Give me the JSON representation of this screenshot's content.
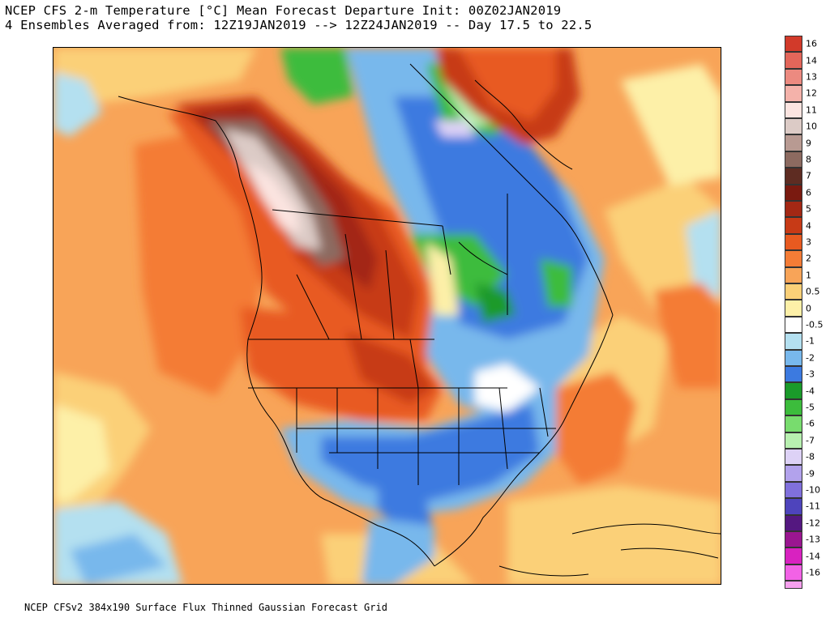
{
  "header": {
    "line1": "NCEP CFS 2-m Temperature [°C] Mean Forecast Departure Init: 00Z02JAN2019",
    "line2": "4 Ensembles Averaged from: 12Z19JAN2019 --> 12Z24JAN2019 -- Day 17.5 to 22.5"
  },
  "footer": {
    "text": "NCEP CFSv2 384x190 Surface Flux Thinned Gaussian Forecast Grid"
  },
  "legend": {
    "bands": [
      {
        "label": "16",
        "color": "#d23a2a"
      },
      {
        "label": "14",
        "color": "#e3665a"
      },
      {
        "label": "13",
        "color": "#ec8a80"
      },
      {
        "label": "12",
        "color": "#f4b2aa"
      },
      {
        "label": "11",
        "color": "#fbe4e0"
      },
      {
        "label": "10",
        "color": "#dccbc6"
      },
      {
        "label": "9",
        "color": "#b89a92"
      },
      {
        "label": "8",
        "color": "#8c6a60"
      },
      {
        "label": "7",
        "color": "#5e2c22"
      },
      {
        "label": "6",
        "color": "#7a1a10"
      },
      {
        "label": "5",
        "color": "#a32814"
      },
      {
        "label": "4",
        "color": "#c73a16"
      },
      {
        "label": "3",
        "color": "#e85a20"
      },
      {
        "label": "2",
        "color": "#f47c36"
      },
      {
        "label": "1",
        "color": "#f8a458"
      },
      {
        "label": "0.5",
        "color": "#fbd078"
      },
      {
        "label": "0",
        "color": "#fdf0a8"
      },
      {
        "label": "-0.5",
        "color": "#ffffff"
      },
      {
        "label": "-1",
        "color": "#b4e0f0"
      },
      {
        "label": "-2",
        "color": "#78b8ec"
      },
      {
        "label": "-3",
        "color": "#3c7ae0"
      },
      {
        "label": "-4",
        "color": "#1a9a2a"
      },
      {
        "label": "-5",
        "color": "#3cbc3c"
      },
      {
        "label": "-6",
        "color": "#78dc6e"
      },
      {
        "label": "-7",
        "color": "#b8f0b0"
      },
      {
        "label": "-8",
        "color": "#ddd2f6"
      },
      {
        "label": "-9",
        "color": "#b2a2ec"
      },
      {
        "label": "-10",
        "color": "#8070dc"
      },
      {
        "label": "-11",
        "color": "#4e44bc"
      },
      {
        "label": "-12",
        "color": "#541880"
      },
      {
        "label": "-13",
        "color": "#9a1690"
      },
      {
        "label": "-14",
        "color": "#d822c0"
      },
      {
        "label": "-16",
        "color": "#f262e6"
      }
    ],
    "bottom_color": "#f6a0ee"
  },
  "map_regions": {
    "ocean_warm": "Eastern Pacific and Western Atlantic warm anomaly",
    "cold_core": "Southern/Eastern United States cold anomaly"
  }
}
